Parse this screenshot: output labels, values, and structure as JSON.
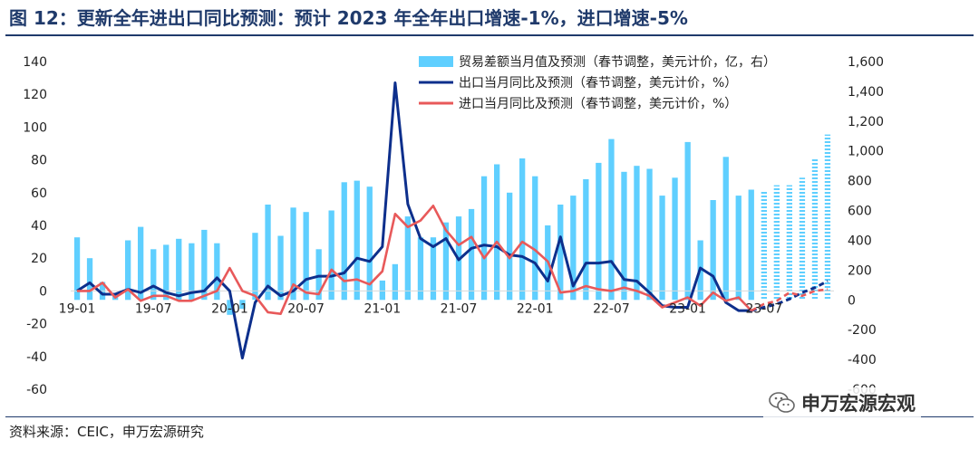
{
  "header": {
    "title": "图 12：更新全年进出口同比预测：预计 2023 年全年出口增速-1%，进口增速-5%"
  },
  "footer": {
    "source": "资料来源：CEIC，申万宏源研究",
    "watermark": "申万宏源宏观"
  },
  "colors": {
    "title": "#1f3a6b",
    "trade_balance": "#5fcfff",
    "export": "#0d2f8c",
    "import": "#e8595a"
  },
  "icons": {
    "watermark": "wechat-icon"
  },
  "chart_data": {
    "type": "bar+line",
    "categories": [
      "19-01",
      "19-02",
      "19-03",
      "19-04",
      "19-05",
      "19-06",
      "19-07",
      "19-08",
      "19-09",
      "19-10",
      "19-11",
      "19-12",
      "20-01",
      "20-02",
      "20-03",
      "20-04",
      "20-05",
      "20-06",
      "20-07",
      "20-08",
      "20-09",
      "20-10",
      "20-11",
      "20-12",
      "21-01",
      "21-02",
      "21-03",
      "21-04",
      "21-05",
      "21-06",
      "21-07",
      "21-08",
      "21-09",
      "21-10",
      "21-11",
      "21-12",
      "22-01",
      "22-02",
      "22-03",
      "22-04",
      "22-05",
      "22-06",
      "22-07",
      "22-08",
      "22-09",
      "22-10",
      "22-11",
      "22-12",
      "23-01",
      "23-02",
      "23-03",
      "23-04",
      "23-05",
      "23-06",
      "23-07",
      "23-08",
      "23-09",
      "23-10",
      "23-11",
      "23-12"
    ],
    "x_tick_labels": [
      "19-01",
      "19-07",
      "20-01",
      "20-07",
      "21-01",
      "21-07",
      "22-01",
      "22-07",
      "23-01",
      "23-07"
    ],
    "forecast_start_index": 54,
    "ylim_left": [
      -60,
      140
    ],
    "yticks_left": [
      "140",
      "120",
      "100",
      "80",
      "60",
      "40",
      "20",
      "0",
      "-20",
      "-40",
      "-60"
    ],
    "ylim_right": [
      -600,
      1600
    ],
    "yticks_right": [
      "1,600",
      "1,400",
      "1,200",
      "1,000",
      "800",
      "600",
      "400",
      "200",
      "0",
      "-200",
      "-400",
      "-600"
    ],
    "legend": [
      {
        "label": "贸易差额当月值及预测（春节调整，美元计价，亿，右）",
        "kind": "bar"
      },
      {
        "label": "出口当月同比及预测（春节调整，美元计价，%）",
        "kind": "line"
      },
      {
        "label": "进口当月同比及预测（春节调整，美元计价，%）",
        "kind": "line"
      }
    ],
    "series": [
      {
        "name": "贸易差额当月值及预测（春节调整，美元计价，亿，右）",
        "axis": "right",
        "type": "bar",
        "values": [
          420,
          280,
          120,
          40,
          400,
          490,
          340,
          370,
          410,
          380,
          470,
          380,
          -100,
          -60,
          450,
          640,
          430,
          620,
          590,
          340,
          600,
          790,
          800,
          760,
          130,
          240,
          560,
          420,
          420,
          520,
          560,
          610,
          830,
          910,
          720,
          950,
          830,
          500,
          640,
          700,
          810,
          920,
          1080,
          860,
          900,
          880,
          700,
          820,
          1060,
          400,
          670,
          960,
          700,
          740,
          730,
          770,
          770,
          820,
          950,
          1110
        ]
      },
      {
        "name": "出口当月同比及预测（春节调整，美元计价，%）",
        "axis": "left",
        "type": "line",
        "values": [
          0,
          5,
          -2,
          -2,
          1,
          -1,
          3,
          -1,
          -3,
          -1,
          0,
          8,
          0,
          -41,
          -7,
          3,
          -3,
          0,
          7,
          9,
          9,
          11,
          20,
          18,
          27,
          127,
          53,
          32,
          27,
          32,
          19,
          26,
          28,
          27,
          22,
          21,
          17,
          6,
          33,
          3,
          17,
          17,
          18,
          7,
          6,
          -1,
          -9,
          -10,
          -10,
          14,
          9,
          -7,
          -12,
          -12,
          -10,
          -8,
          -5,
          -1,
          2,
          6
        ]
      },
      {
        "name": "进口当月同比及预测（春节调整，美元计价，%）",
        "axis": "left",
        "type": "line",
        "values": [
          0,
          0,
          5,
          -4,
          1,
          -6,
          -3,
          -3,
          -6,
          -6,
          -3,
          0,
          14,
          0,
          -3,
          -13,
          -14,
          4,
          -1,
          -2,
          13,
          6,
          7,
          4,
          12,
          47,
          39,
          43,
          52,
          37,
          28,
          33,
          20,
          30,
          20,
          30,
          25,
          18,
          -1,
          0,
          3,
          1,
          0,
          2,
          0,
          -3,
          -10,
          -7,
          -4,
          -9,
          -1,
          -6,
          -4,
          -12,
          -8,
          -6,
          -1,
          -3,
          0,
          1
        ]
      }
    ]
  }
}
